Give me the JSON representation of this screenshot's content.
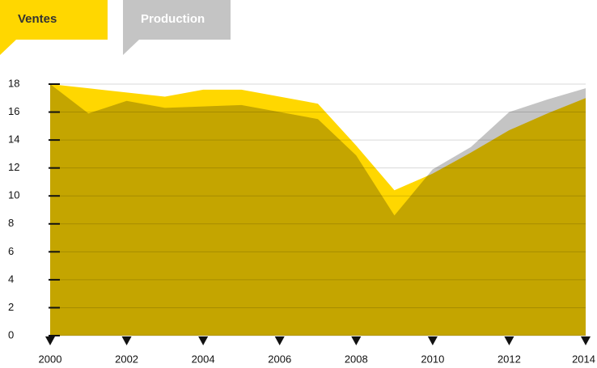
{
  "chart_data": {
    "type": "area",
    "x": [
      2000,
      2001,
      2002,
      2003,
      2004,
      2005,
      2006,
      2007,
      2008,
      2009,
      2010,
      2011,
      2012,
      2013,
      2014
    ],
    "series": [
      {
        "name": "Ventes",
        "color": "#ffd700",
        "values": [
          18,
          17.7,
          17.4,
          17.1,
          17.6,
          17.6,
          17.1,
          16.6,
          13.6,
          10.4,
          11.6,
          13.1,
          14.7,
          15.9,
          17.0
        ]
      },
      {
        "name": "Production",
        "color": "#c4c4c4",
        "values": [
          18,
          15.9,
          16.8,
          16.3,
          16.4,
          16.5,
          16.0,
          15.5,
          12.9,
          8.6,
          11.9,
          13.5,
          16.0,
          16.9,
          17.7
        ]
      }
    ],
    "xlim": [
      2000,
      2014
    ],
    "xticks": [
      2000,
      2002,
      2004,
      2006,
      2008,
      2010,
      2012,
      2014
    ],
    "ylim": [
      0,
      18
    ],
    "yticks": [
      0,
      2,
      4,
      6,
      8,
      10,
      12,
      14,
      16,
      18
    ],
    "grid": true
  }
}
